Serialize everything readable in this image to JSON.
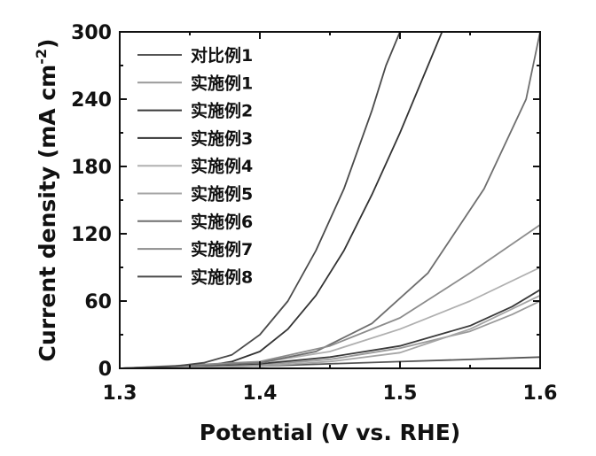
{
  "chart_data": {
    "type": "line",
    "xlabel": "Potential (V vs. RHE)",
    "ylabel": "Current density (mA cm",
    "ylabel_sup": "-2",
    "ylabel_close": ")",
    "xlim": [
      1.3,
      1.6
    ],
    "ylim": [
      0,
      300
    ],
    "xticks": [
      "1.3",
      "1.4",
      "1.5",
      "1.6"
    ],
    "xtick_values": [
      1.3,
      1.4,
      1.5,
      1.6
    ],
    "yticks": [
      "0",
      "60",
      "120",
      "180",
      "240",
      "300"
    ],
    "ytick_values": [
      0,
      60,
      120,
      180,
      240,
      300
    ],
    "grid": false,
    "legend_position": "top-left",
    "series": [
      {
        "name": "对比例1",
        "color": "#555555",
        "x": [
          1.3,
          1.35,
          1.4,
          1.45,
          1.5,
          1.55,
          1.6
        ],
        "y": [
          0,
          1,
          2,
          4,
          6,
          8,
          10
        ]
      },
      {
        "name": "实施例1",
        "color": "#9a9a9a",
        "x": [
          1.3,
          1.4,
          1.45,
          1.5,
          1.55,
          1.58,
          1.6
        ],
        "y": [
          0,
          3,
          8,
          18,
          33,
          48,
          60
        ]
      },
      {
        "name": "实施例2",
        "color": "#3a3a3a",
        "x": [
          1.3,
          1.4,
          1.45,
          1.5,
          1.55,
          1.58,
          1.6
        ],
        "y": [
          0,
          4,
          10,
          20,
          38,
          55,
          70
        ]
      },
      {
        "name": "实施例3",
        "color": "#333333",
        "x": [
          1.3,
          1.36,
          1.38,
          1.4,
          1.42,
          1.44,
          1.46,
          1.48,
          1.5,
          1.52,
          1.53
        ],
        "y": [
          0,
          2,
          6,
          15,
          35,
          65,
          105,
          155,
          210,
          270,
          300
        ]
      },
      {
        "name": "实施例4",
        "color": "#b0b0b0",
        "x": [
          1.3,
          1.4,
          1.45,
          1.5,
          1.55,
          1.6
        ],
        "y": [
          0,
          5,
          15,
          35,
          60,
          90
        ]
      },
      {
        "name": "实施例5",
        "color": "#a5a5a5",
        "x": [
          1.3,
          1.4,
          1.45,
          1.5,
          1.55,
          1.6
        ],
        "y": [
          0,
          2,
          6,
          14,
          35,
          65
        ]
      },
      {
        "name": "实施例6",
        "color": "#6e6e6e",
        "x": [
          1.3,
          1.4,
          1.44,
          1.48,
          1.52,
          1.56,
          1.59,
          1.6
        ],
        "y": [
          0,
          5,
          15,
          40,
          85,
          160,
          240,
          300
        ]
      },
      {
        "name": "实施例7",
        "color": "#8c8c8c",
        "x": [
          1.3,
          1.4,
          1.45,
          1.5,
          1.55,
          1.6
        ],
        "y": [
          0,
          6,
          20,
          45,
          85,
          128
        ]
      },
      {
        "name": "实施例8",
        "color": "#4a4a4a",
        "x": [
          1.3,
          1.34,
          1.36,
          1.38,
          1.4,
          1.42,
          1.44,
          1.46,
          1.48,
          1.49,
          1.5
        ],
        "y": [
          0,
          2,
          5,
          12,
          30,
          60,
          105,
          160,
          230,
          270,
          300
        ]
      }
    ]
  }
}
